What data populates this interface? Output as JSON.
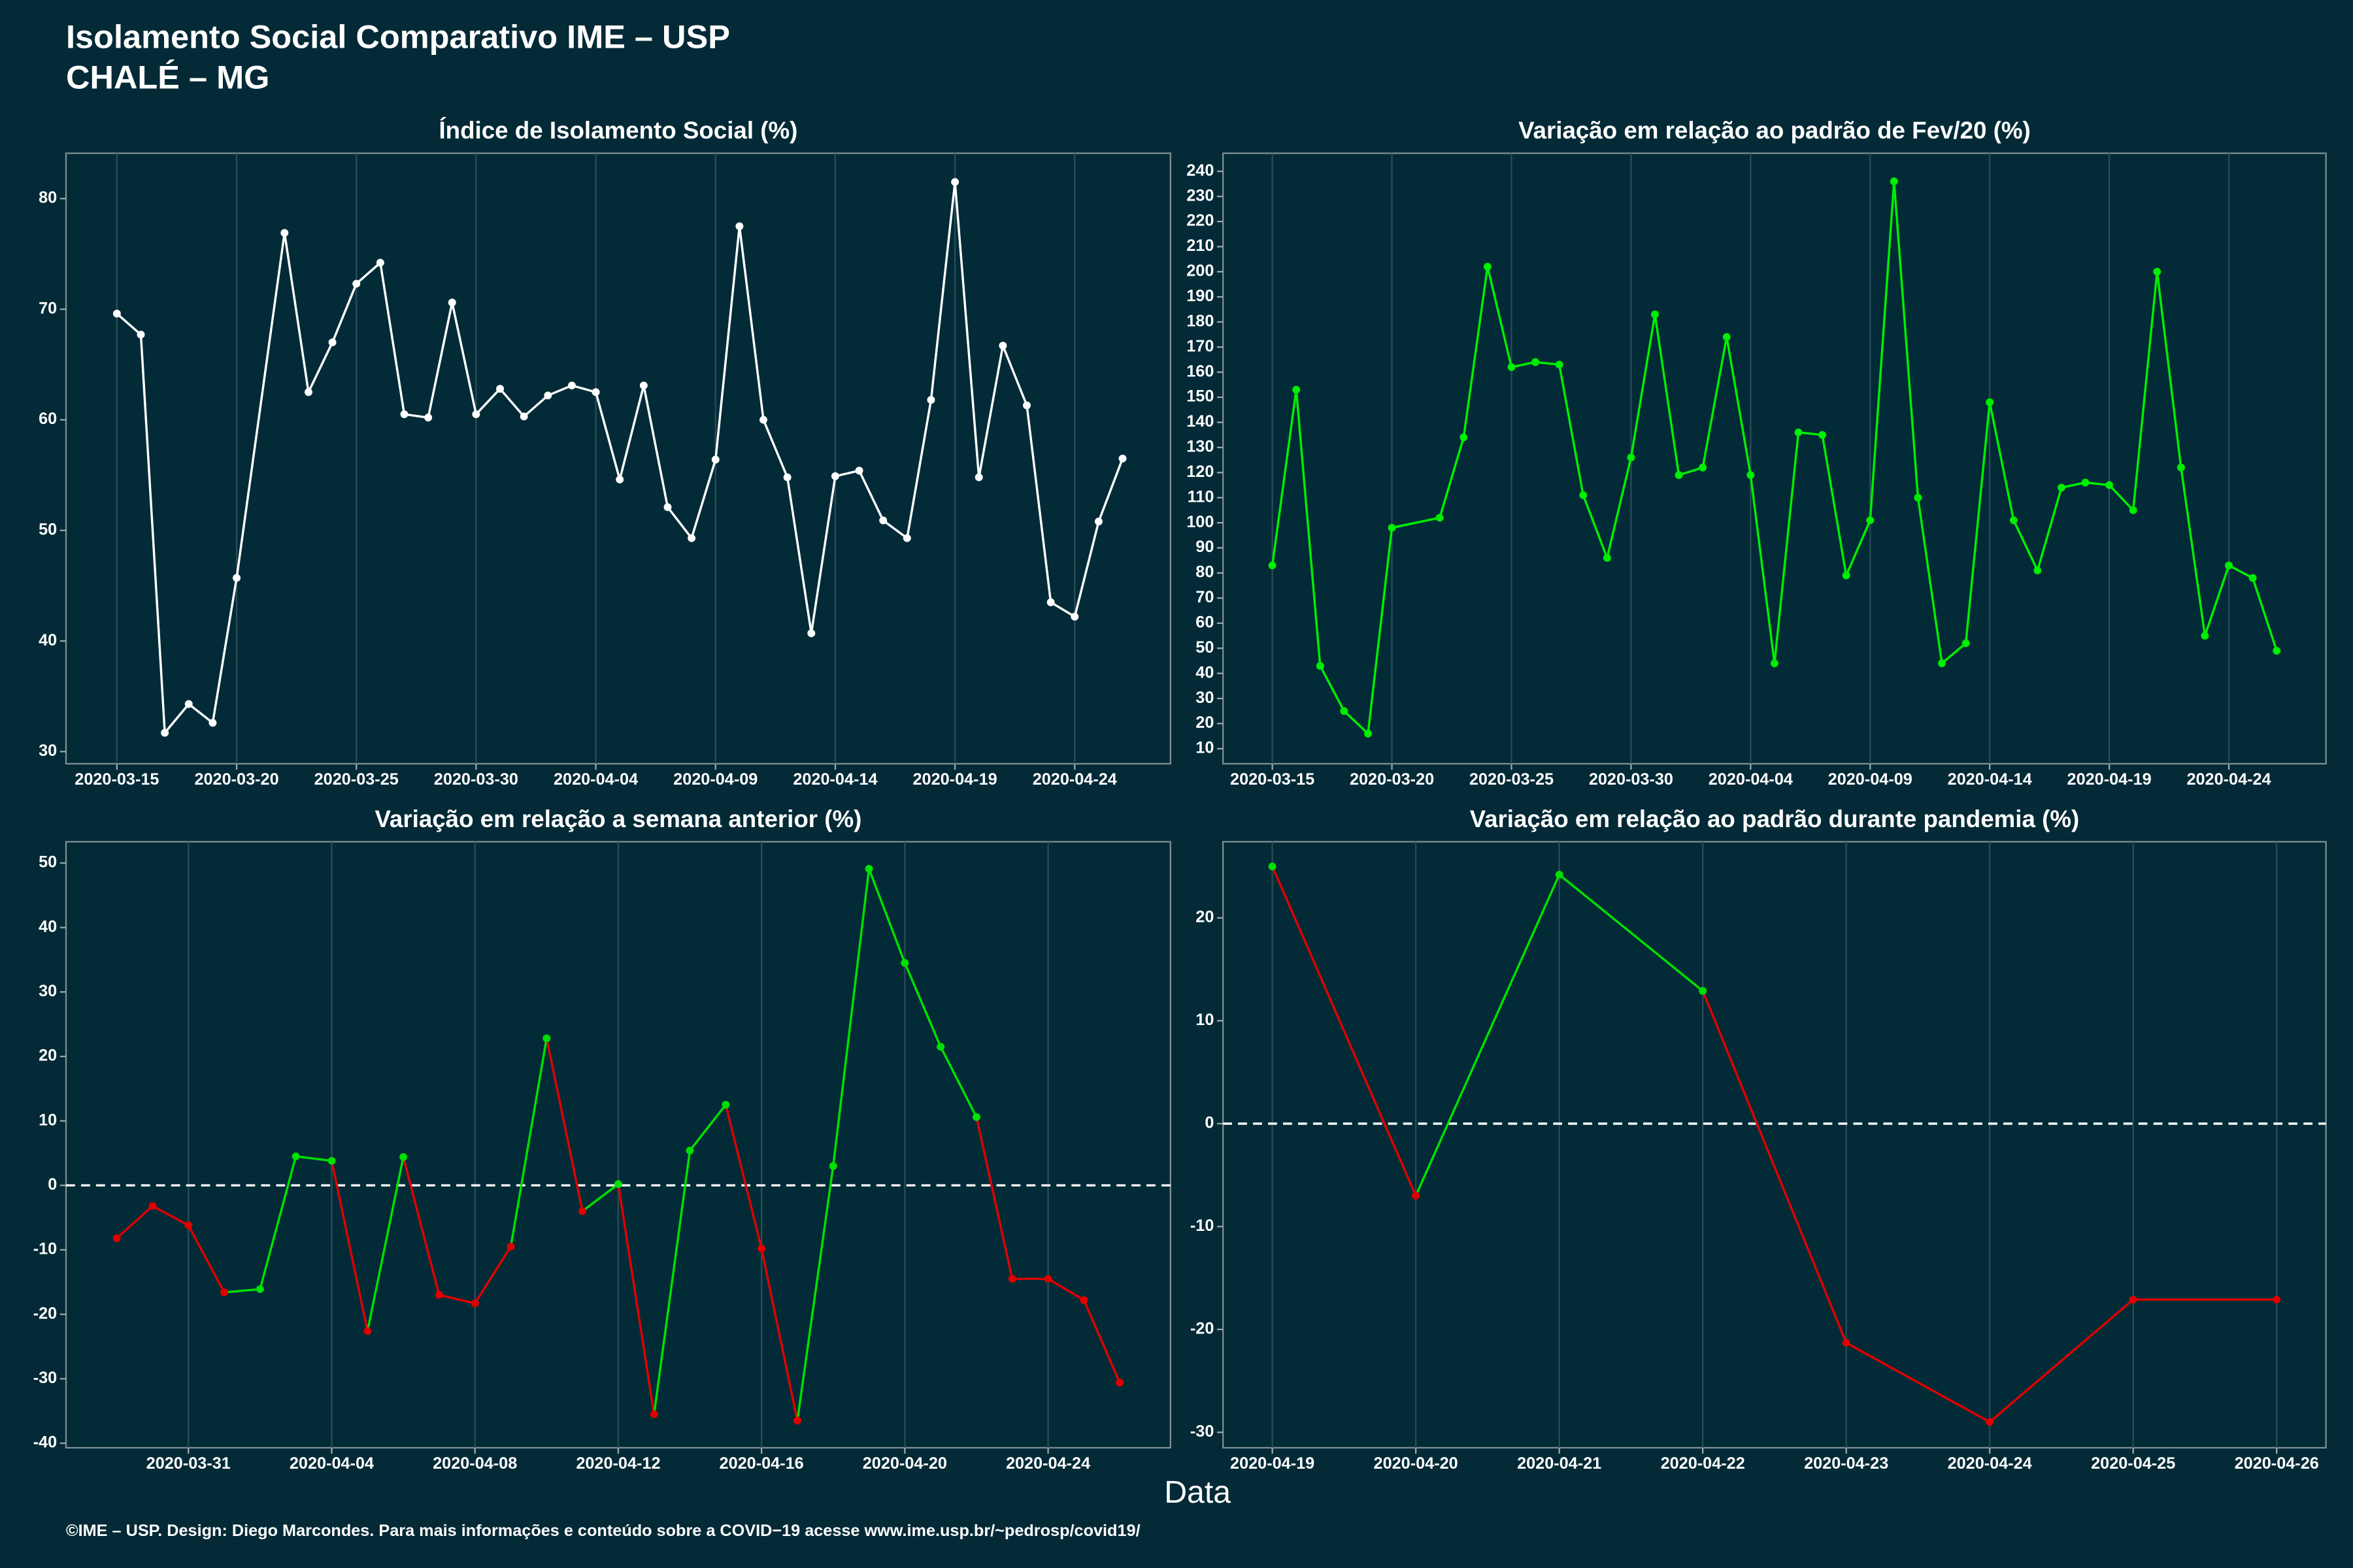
{
  "title": "Isolamento Social Comparativo IME – USP",
  "subtitle": "CHALÉ – MG",
  "x_label": "Data",
  "footer": "©IME – USP. Design: Diego Marcondes. Para mais informações e conteúdo sobre a COVID−19 acesse www.ime.usp.br/~pedrosp/covid19/",
  "chart_data": [
    {
      "type": "line",
      "title": "Índice de Isolamento Social (%)",
      "x": [
        "2020-03-15",
        "2020-03-16",
        "2020-03-17",
        "2020-03-18",
        "2020-03-19",
        "2020-03-20",
        "2020-03-22",
        "2020-03-23",
        "2020-03-24",
        "2020-03-25",
        "2020-03-26",
        "2020-03-27",
        "2020-03-28",
        "2020-03-29",
        "2020-03-30",
        "2020-03-31",
        "2020-04-01",
        "2020-04-02",
        "2020-04-03",
        "2020-04-04",
        "2020-04-05",
        "2020-04-06",
        "2020-04-07",
        "2020-04-08",
        "2020-04-09",
        "2020-04-10",
        "2020-04-11",
        "2020-04-12",
        "2020-04-13",
        "2020-04-14",
        "2020-04-15",
        "2020-04-16",
        "2020-04-17",
        "2020-04-18",
        "2020-04-19",
        "2020-04-20",
        "2020-04-21",
        "2020-04-22",
        "2020-04-23",
        "2020-04-24",
        "2020-04-25",
        "2020-04-26"
      ],
      "series": [
        {
          "color": "#ffffff",
          "values": [
            69.6,
            67.7,
            31.7,
            34.3,
            32.6,
            45.7,
            76.9,
            62.5,
            67.0,
            72.3,
            74.2,
            60.5,
            60.2,
            70.6,
            60.5,
            62.8,
            60.3,
            62.2,
            63.1,
            62.5,
            54.6,
            63.1,
            52.1,
            49.3,
            56.4,
            77.5,
            60.0,
            54.8,
            40.7,
            54.9,
            55.4,
            50.9,
            49.3,
            61.8,
            81.5,
            54.8,
            66.7,
            61.3,
            43.5,
            42.2,
            50.8,
            56.5
          ]
        }
      ],
      "xlim": [
        "2020-03-12T21:00",
        "2020-04-28T00:00"
      ],
      "xticks": [
        "2020-03-15",
        "2020-03-20",
        "2020-03-25",
        "2020-03-30",
        "2020-04-04",
        "2020-04-09",
        "2020-04-14",
        "2020-04-19",
        "2020-04-24"
      ],
      "ylim": [
        28.9,
        84.1
      ],
      "yticks": [
        30,
        40,
        50,
        60,
        70,
        80
      ],
      "grid": true
    },
    {
      "type": "line",
      "title": "Variação em relação ao padrão de Fev/20 (%)",
      "x": [
        "2020-03-15",
        "2020-03-16",
        "2020-03-17",
        "2020-03-18",
        "2020-03-19",
        "2020-03-20",
        "2020-03-22",
        "2020-03-23",
        "2020-03-24",
        "2020-03-25",
        "2020-03-26",
        "2020-03-27",
        "2020-03-28",
        "2020-03-29",
        "2020-03-30",
        "2020-03-31",
        "2020-04-01",
        "2020-04-02",
        "2020-04-03",
        "2020-04-04",
        "2020-04-05",
        "2020-04-06",
        "2020-04-07",
        "2020-04-08",
        "2020-04-09",
        "2020-04-10",
        "2020-04-11",
        "2020-04-12",
        "2020-04-13",
        "2020-04-14",
        "2020-04-15",
        "2020-04-16",
        "2020-04-17",
        "2020-04-18",
        "2020-04-19",
        "2020-04-20",
        "2020-04-21",
        "2020-04-22",
        "2020-04-23",
        "2020-04-24",
        "2020-04-25",
        "2020-04-26"
      ],
      "series": [
        {
          "color": "#00ee00",
          "values": [
            83,
            153,
            43,
            25,
            16,
            98,
            102,
            134,
            202,
            162,
            164,
            163,
            111,
            86,
            126,
            183,
            119,
            122,
            174,
            119,
            44,
            136,
            135,
            79,
            101,
            236,
            110,
            44,
            52,
            148,
            101,
            81,
            114,
            116,
            115,
            105,
            200,
            122,
            55,
            83,
            78,
            49
          ]
        }
      ],
      "xlim": [
        "2020-03-12T22:30",
        "2020-04-28T01:30"
      ],
      "xticks": [
        "2020-03-15",
        "2020-03-20",
        "2020-03-25",
        "2020-03-30",
        "2020-04-04",
        "2020-04-09",
        "2020-04-14",
        "2020-04-19",
        "2020-04-24"
      ],
      "ylim": [
        4,
        247.2
      ],
      "yticks": [
        10,
        20,
        30,
        40,
        50,
        60,
        70,
        80,
        90,
        100,
        110,
        120,
        130,
        140,
        150,
        160,
        170,
        180,
        190,
        200,
        210,
        220,
        230,
        240
      ],
      "grid": true
    },
    {
      "type": "line",
      "title": "Variação em relação a semana anterior (%)",
      "x": [
        "2020-03-29",
        "2020-03-30",
        "2020-03-31",
        "2020-04-01",
        "2020-04-02",
        "2020-04-03",
        "2020-04-04",
        "2020-04-05",
        "2020-04-06",
        "2020-04-07",
        "2020-04-08",
        "2020-04-09",
        "2020-04-10",
        "2020-04-11",
        "2020-04-12",
        "2020-04-13",
        "2020-04-14",
        "2020-04-15",
        "2020-04-16",
        "2020-04-17",
        "2020-04-18",
        "2020-04-19",
        "2020-04-20",
        "2020-04-21",
        "2020-04-22",
        "2020-04-23",
        "2020-04-24",
        "2020-04-25",
        "2020-04-26"
      ],
      "series": [
        {
          "values": [
            -8.2,
            -3.2,
            -6.2,
            -16.6,
            -16.1,
            4.5,
            3.8,
            -22.6,
            4.4,
            -17.0,
            -18.3,
            -9.5,
            22.8,
            -4.0,
            0.2,
            -35.5,
            5.4,
            12.5,
            -9.8,
            -36.5,
            3.0,
            49.1,
            34.5,
            21.5,
            10.6,
            -14.5,
            -14.5,
            -17.8,
            -30.6
          ],
          "colors": [
            "#e00000",
            "#e00000",
            "#e00000",
            "#e00000",
            "#00e000",
            "#00e000",
            "#00e000",
            "#e00000",
            "#00e000",
            "#e00000",
            "#e00000",
            "#e00000",
            "#00e000",
            "#e00000",
            "#00e000",
            "#e00000",
            "#00e000",
            "#00e000",
            "#e00000",
            "#e00000",
            "#00e000",
            "#00e000",
            "#00e000",
            "#00e000",
            "#00e000",
            "#e00000",
            "#e00000",
            "#e00000",
            "#e00000"
          ]
        }
      ],
      "hline": 0,
      "xlim": [
        "2020-03-27T14:00",
        "2020-04-27T10:00"
      ],
      "xticks": [
        "2020-03-31",
        "2020-04-04",
        "2020-04-08",
        "2020-04-12",
        "2020-04-16",
        "2020-04-20",
        "2020-04-24"
      ],
      "ylim": [
        -40.7,
        53.3
      ],
      "yticks": [
        -40,
        -30,
        -20,
        -10,
        0,
        10,
        20,
        30,
        40,
        50
      ],
      "grid": true
    },
    {
      "type": "line",
      "title": "Variação em relação ao padrão durante pandemia (%)",
      "x": [
        "2020-04-19",
        "2020-04-20",
        "2020-04-21",
        "2020-04-22",
        "2020-04-23",
        "2020-04-24",
        "2020-04-25",
        "2020-04-26"
      ],
      "series": [
        {
          "values": [
            25.0,
            -7.0,
            24.2,
            12.9,
            -21.3,
            -29.0,
            -17.1,
            -17.1
          ],
          "colors": [
            "#00e000",
            "#e00000",
            "#00e000",
            "#00e000",
            "#e00000",
            "#e00000",
            "#e00000",
            "#e00000"
          ]
        }
      ],
      "hline": 0,
      "xlim": [
        "2020-04-18T15:45",
        "2020-04-26T08:15"
      ],
      "xticks": [
        "2020-04-19",
        "2020-04-20",
        "2020-04-21",
        "2020-04-22",
        "2020-04-23",
        "2020-04-24",
        "2020-04-25",
        "2020-04-26"
      ],
      "ylim": [
        -31.5,
        27.4
      ],
      "yticks": [
        -30,
        -20,
        -10,
        0,
        10,
        20
      ],
      "grid": true
    }
  ]
}
